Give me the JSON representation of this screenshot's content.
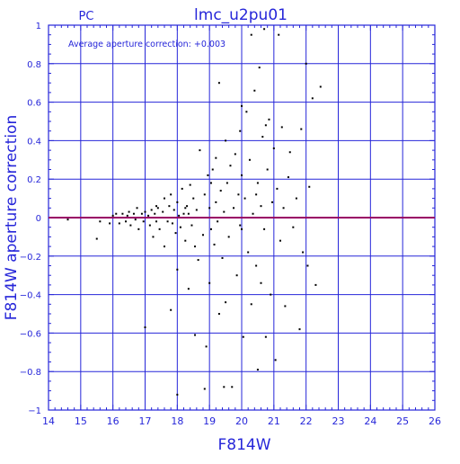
{
  "chart_data": {
    "type": "scatter",
    "title": "lmc_u2pu01",
    "corner_label": "PC",
    "annotation": "Average aperture correction: +0.003",
    "xlabel": "F814W",
    "ylabel": "F814W aperture correction",
    "xlim": [
      14,
      26
    ],
    "ylim": [
      -1,
      1
    ],
    "x_ticks": [
      14,
      15,
      16,
      17,
      18,
      19,
      20,
      21,
      22,
      23,
      24,
      25,
      26
    ],
    "y_ticks": [
      -1,
      -0.8,
      -0.6,
      -0.4,
      -0.2,
      0,
      0.2,
      0.4,
      0.6,
      0.8,
      1
    ],
    "x_tick_labels": [
      "14",
      "15",
      "16",
      "17",
      "18",
      "19",
      "20",
      "21",
      "22",
      "23",
      "24",
      "25",
      "26"
    ],
    "y_tick_labels": [
      "−1",
      "−0.8",
      "−0.6",
      "−0.4",
      "−0.2",
      "0",
      "0.2",
      "0.4",
      "0.6",
      "0.8",
      "1"
    ],
    "grid": true,
    "reference_line": {
      "y": 0,
      "color": "#990066"
    },
    "colors": {
      "axes": "#2626d9",
      "points": "#000000"
    },
    "points": [
      [
        14.6,
        -0.01
      ],
      [
        15.1,
        0.0
      ],
      [
        15.5,
        -0.11
      ],
      [
        15.6,
        -0.02
      ],
      [
        15.8,
        0.0
      ],
      [
        15.9,
        -0.03
      ],
      [
        16.0,
        0.01
      ],
      [
        16.1,
        0.02
      ],
      [
        16.2,
        -0.03
      ],
      [
        16.25,
        0.0
      ],
      [
        16.3,
        0.02
      ],
      [
        16.4,
        -0.02
      ],
      [
        16.45,
        0.01
      ],
      [
        16.5,
        0.03
      ],
      [
        16.55,
        -0.04
      ],
      [
        16.6,
        0.0
      ],
      [
        16.65,
        0.02
      ],
      [
        16.7,
        -0.01
      ],
      [
        16.75,
        0.05
      ],
      [
        16.8,
        -0.06
      ],
      [
        16.85,
        0.0
      ],
      [
        16.9,
        0.02
      ],
      [
        16.95,
        -0.02
      ],
      [
        17.0,
        0.03
      ],
      [
        17.0,
        -0.57
      ],
      [
        17.1,
        0.01
      ],
      [
        17.15,
        -0.04
      ],
      [
        17.2,
        0.04
      ],
      [
        17.25,
        -0.1
      ],
      [
        17.3,
        0.02
      ],
      [
        17.35,
        -0.02
      ],
      [
        17.4,
        0.05
      ],
      [
        17.45,
        -0.06
      ],
      [
        17.5,
        0.0
      ],
      [
        17.55,
        0.03
      ],
      [
        17.6,
        -0.15
      ],
      [
        17.6,
        0.1
      ],
      [
        17.7,
        -0.02
      ],
      [
        17.75,
        0.06
      ],
      [
        17.8,
        -0.48
      ],
      [
        17.8,
        0.12
      ],
      [
        17.85,
        -0.03
      ],
      [
        17.9,
        0.04
      ],
      [
        17.95,
        -0.08
      ],
      [
        18.0,
        0.08
      ],
      [
        18.0,
        -0.27
      ],
      [
        18.05,
        0.01
      ],
      [
        18.1,
        -0.05
      ],
      [
        18.15,
        0.15
      ],
      [
        18.2,
        0.02
      ],
      [
        18.25,
        -0.12
      ],
      [
        18.3,
        0.06
      ],
      [
        18.35,
        -0.37
      ],
      [
        18.4,
        0.17
      ],
      [
        18.45,
        -0.04
      ],
      [
        18.5,
        0.1
      ],
      [
        18.55,
        -0.61
      ],
      [
        18.55,
        -0.15
      ],
      [
        18.6,
        0.04
      ],
      [
        18.65,
        -0.22
      ],
      [
        18.7,
        0.35
      ],
      [
        18.75,
        0.0
      ],
      [
        18.8,
        -0.09
      ],
      [
        18.85,
        0.12
      ],
      [
        18.9,
        -0.67
      ],
      [
        18.95,
        0.22
      ],
      [
        19.0,
        -0.34
      ],
      [
        19.0,
        0.05
      ],
      [
        19.05,
        -0.06
      ],
      [
        19.1,
        0.25
      ],
      [
        19.15,
        -0.14
      ],
      [
        19.2,
        0.08
      ],
      [
        19.2,
        0.31
      ],
      [
        19.25,
        -0.02
      ],
      [
        19.3,
        -0.5
      ],
      [
        19.3,
        0.7
      ],
      [
        19.35,
        0.14
      ],
      [
        19.4,
        -0.21
      ],
      [
        19.45,
        0.03
      ],
      [
        19.5,
        0.4
      ],
      [
        19.5,
        -0.44
      ],
      [
        19.55,
        0.18
      ],
      [
        19.6,
        -0.1
      ],
      [
        19.65,
        0.27
      ],
      [
        19.7,
        -0.88
      ],
      [
        19.75,
        0.05
      ],
      [
        19.8,
        0.33
      ],
      [
        19.85,
        -0.3
      ],
      [
        19.9,
        0.12
      ],
      [
        19.95,
        0.45
      ],
      [
        20.0,
        -0.06
      ],
      [
        20.0,
        0.22
      ],
      [
        20.05,
        -0.62
      ],
      [
        20.1,
        0.1
      ],
      [
        20.15,
        0.55
      ],
      [
        20.2,
        -0.18
      ],
      [
        20.25,
        0.3
      ],
      [
        20.3,
        0.95
      ],
      [
        20.3,
        -0.45
      ],
      [
        20.35,
        0.02
      ],
      [
        20.4,
        0.66
      ],
      [
        20.45,
        -0.25
      ],
      [
        20.5,
        0.18
      ],
      [
        20.5,
        -0.79
      ],
      [
        20.55,
        0.78
      ],
      [
        20.6,
        0.06
      ],
      [
        20.6,
        -0.34
      ],
      [
        20.65,
        0.42
      ],
      [
        20.7,
        -0.06
      ],
      [
        20.7,
        0.98
      ],
      [
        20.75,
        -0.62
      ],
      [
        20.8,
        0.25
      ],
      [
        20.85,
        0.51
      ],
      [
        20.9,
        -0.4
      ],
      [
        20.95,
        0.08
      ],
      [
        21.0,
        0.36
      ],
      [
        21.05,
        -0.74
      ],
      [
        21.1,
        0.15
      ],
      [
        21.15,
        0.95
      ],
      [
        21.2,
        -0.12
      ],
      [
        21.25,
        0.47
      ],
      [
        21.3,
        0.05
      ],
      [
        21.35,
        -0.46
      ],
      [
        21.45,
        0.21
      ],
      [
        21.5,
        0.34
      ],
      [
        21.6,
        -0.05
      ],
      [
        21.7,
        0.1
      ],
      [
        21.8,
        -0.58
      ],
      [
        21.85,
        0.46
      ],
      [
        21.9,
        -0.18
      ],
      [
        22.0,
        0.8
      ],
      [
        22.05,
        -0.25
      ],
      [
        22.1,
        0.16
      ],
      [
        22.2,
        0.62
      ],
      [
        22.3,
        -0.35
      ],
      [
        22.45,
        0.68
      ],
      [
        18.0,
        -0.92
      ],
      [
        18.35,
        0.02
      ],
      [
        18.85,
        -0.89
      ],
      [
        19.45,
        -0.88
      ],
      [
        20.0,
        0.58
      ],
      [
        20.75,
        0.48
      ],
      [
        21.5,
        0.0
      ],
      [
        18.65,
        0.0
      ],
      [
        17.85,
        0.0
      ],
      [
        19.55,
        0.0
      ],
      [
        20.25,
        0.0
      ],
      [
        19.95,
        -0.04
      ],
      [
        20.45,
        0.12
      ],
      [
        19.05,
        0.18
      ],
      [
        18.25,
        0.05
      ],
      [
        17.35,
        0.06
      ]
    ]
  }
}
